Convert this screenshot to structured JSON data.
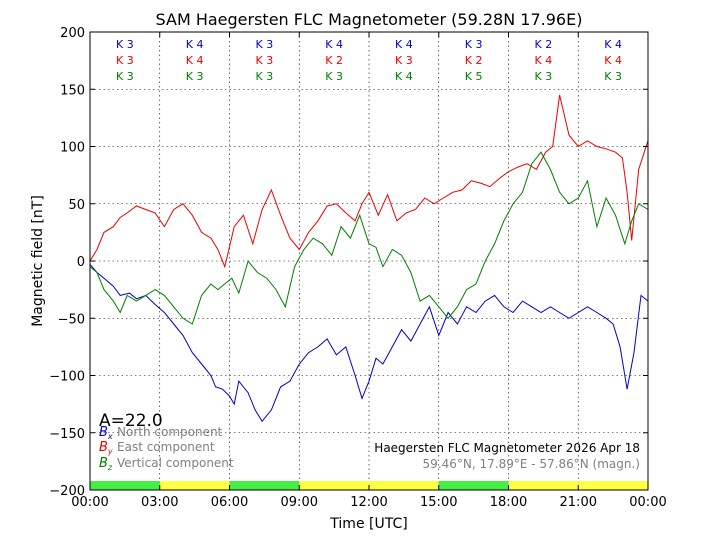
{
  "chart_data": {
    "type": "line",
    "title": "SAM Haegersten FLC Magnetometer (59.28N 17.96E)",
    "xlabel": "Time [UTC]",
    "ylabel": "Magnetic field [nT]",
    "xlim": [
      0,
      24
    ],
    "ylim": [
      -200,
      200
    ],
    "x_ticks": [
      0,
      3,
      6,
      9,
      12,
      15,
      18,
      21,
      24
    ],
    "x_tick_labels": [
      "00:00",
      "03:00",
      "06:00",
      "09:00",
      "12:00",
      "15:00",
      "18:00",
      "21:00",
      "00:00"
    ],
    "y_ticks": [
      -200,
      -150,
      -100,
      -50,
      0,
      50,
      100,
      150,
      200
    ],
    "y_tick_labels": [
      "−200",
      "−150",
      "−100",
      "−50",
      "0",
      "50",
      "100",
      "150",
      "200"
    ],
    "grid": true,
    "k_index": {
      "bx": {
        "label": "K",
        "color": "#0000cc",
        "values": [
          3,
          4,
          3,
          4,
          4,
          3,
          2,
          4
        ]
      },
      "by": {
        "label": "K",
        "color": "#ee0000",
        "values": [
          3,
          4,
          3,
          2,
          3,
          2,
          4,
          4
        ]
      },
      "bz": {
        "label": "K",
        "color": "#008000",
        "values": [
          3,
          3,
          3,
          3,
          4,
          5,
          3,
          3
        ]
      }
    },
    "activity_band": [
      "#44ee44",
      "#ffff44",
      "#44ee44",
      "#ffff44",
      "#ffff44",
      "#44ee44",
      "#ffff44",
      "#ffff44"
    ],
    "a_index_label": "A=22.0",
    "legend": [
      {
        "symbol": "B",
        "sub": "x",
        "name": "North component",
        "color": "#0000cc"
      },
      {
        "symbol": "B",
        "sub": "y",
        "name": "East component",
        "color": "#ee0000"
      },
      {
        "symbol": "B",
        "sub": "z",
        "name": "Vertical component",
        "color": "#008000"
      }
    ],
    "station_label": "Haegersten FLC Magnetometer 2026 Apr 18",
    "coords_label": "59.46°N, 17.89°E - 57.86°N (magn.)",
    "series": [
      {
        "name": "North component",
        "color": "#0000cc",
        "x": [
          0,
          0.3,
          0.6,
          1,
          1.3,
          1.7,
          2,
          2.4,
          2.8,
          3.2,
          3.6,
          4,
          4.4,
          4.8,
          5.2,
          5.4,
          5.7,
          6,
          6.2,
          6.4,
          6.8,
          7.1,
          7.4,
          7.8,
          8.2,
          8.6,
          9,
          9.4,
          9.8,
          10.2,
          10.6,
          11,
          11.4,
          11.7,
          12,
          12.3,
          12.6,
          13,
          13.4,
          13.8,
          14.2,
          14.6,
          15,
          15.4,
          15.8,
          16.2,
          16.6,
          17,
          17.4,
          17.8,
          18.2,
          18.6,
          19,
          19.4,
          19.8,
          20.2,
          20.6,
          21,
          21.4,
          21.8,
          22.2,
          22.5,
          22.8,
          23.1,
          23.4,
          23.7,
          24
        ],
        "y": [
          -3,
          -10,
          -15,
          -22,
          -30,
          -28,
          -33,
          -30,
          -38,
          -45,
          -55,
          -65,
          -80,
          -90,
          -100,
          -110,
          -112,
          -118,
          -125,
          -105,
          -115,
          -130,
          -140,
          -130,
          -110,
          -105,
          -90,
          -80,
          -75,
          -68,
          -82,
          -75,
          -100,
          -120,
          -105,
          -85,
          -90,
          -75,
          -60,
          -70,
          -55,
          -40,
          -65,
          -45,
          -55,
          -40,
          -45,
          -35,
          -30,
          -40,
          -45,
          -35,
          -40,
          -45,
          -40,
          -45,
          -50,
          -45,
          -40,
          -45,
          -50,
          -55,
          -75,
          -112,
          -80,
          -30,
          -35
        ]
      },
      {
        "name": "East component",
        "color": "#ee0000",
        "x": [
          0,
          0.3,
          0.6,
          1,
          1.3,
          1.6,
          2,
          2.4,
          2.8,
          3.2,
          3.6,
          4,
          4.4,
          4.8,
          5.2,
          5.5,
          5.8,
          6.2,
          6.6,
          7,
          7.4,
          7.8,
          8.2,
          8.6,
          9,
          9.4,
          9.8,
          10.2,
          10.6,
          11,
          11.4,
          11.7,
          12,
          12.4,
          12.8,
          13.2,
          13.6,
          14,
          14.4,
          14.8,
          15.2,
          15.6,
          16,
          16.4,
          16.8,
          17.2,
          17.6,
          18,
          18.4,
          18.8,
          19.2,
          19.6,
          19.9,
          20.2,
          20.6,
          21,
          21.4,
          21.8,
          22.2,
          22.6,
          22.9,
          23.1,
          23.3,
          23.6,
          24
        ],
        "y": [
          0,
          10,
          25,
          30,
          38,
          42,
          48,
          45,
          42,
          30,
          45,
          50,
          40,
          25,
          20,
          10,
          -5,
          30,
          40,
          15,
          45,
          62,
          40,
          20,
          10,
          25,
          35,
          48,
          50,
          42,
          35,
          50,
          60,
          40,
          58,
          35,
          42,
          45,
          55,
          50,
          55,
          60,
          62,
          70,
          68,
          65,
          72,
          78,
          82,
          85,
          80,
          95,
          100,
          145,
          110,
          100,
          105,
          100,
          98,
          95,
          90,
          60,
          18,
          80,
          105
        ]
      },
      {
        "name": "Vertical component",
        "color": "#008000",
        "x": [
          0,
          0.3,
          0.6,
          1,
          1.3,
          1.6,
          2,
          2.4,
          2.8,
          3.2,
          3.6,
          4,
          4.4,
          4.8,
          5.2,
          5.5,
          5.8,
          6.1,
          6.4,
          6.8,
          7.2,
          7.6,
          8,
          8.4,
          8.8,
          9.2,
          9.6,
          10,
          10.4,
          10.8,
          11.2,
          11.6,
          12,
          12.3,
          12.6,
          13,
          13.4,
          13.8,
          14.2,
          14.6,
          15,
          15.4,
          15.8,
          16.2,
          16.6,
          17,
          17.4,
          17.8,
          18.2,
          18.6,
          19,
          19.4,
          19.8,
          20.2,
          20.6,
          21,
          21.4,
          21.8,
          22.2,
          22.6,
          23,
          23.3,
          23.6,
          24
        ],
        "y": [
          -5,
          -10,
          -25,
          -35,
          -45,
          -30,
          -35,
          -30,
          -25,
          -30,
          -40,
          -50,
          -55,
          -30,
          -20,
          -25,
          -20,
          -15,
          -28,
          0,
          -10,
          -15,
          -25,
          -40,
          -5,
          10,
          20,
          15,
          5,
          30,
          20,
          40,
          15,
          12,
          -5,
          10,
          5,
          -10,
          -35,
          -30,
          -40,
          -50,
          -40,
          -25,
          -20,
          0,
          15,
          35,
          50,
          60,
          85,
          95,
          80,
          60,
          50,
          55,
          70,
          30,
          55,
          40,
          15,
          35,
          50,
          45
        ]
      }
    ]
  }
}
